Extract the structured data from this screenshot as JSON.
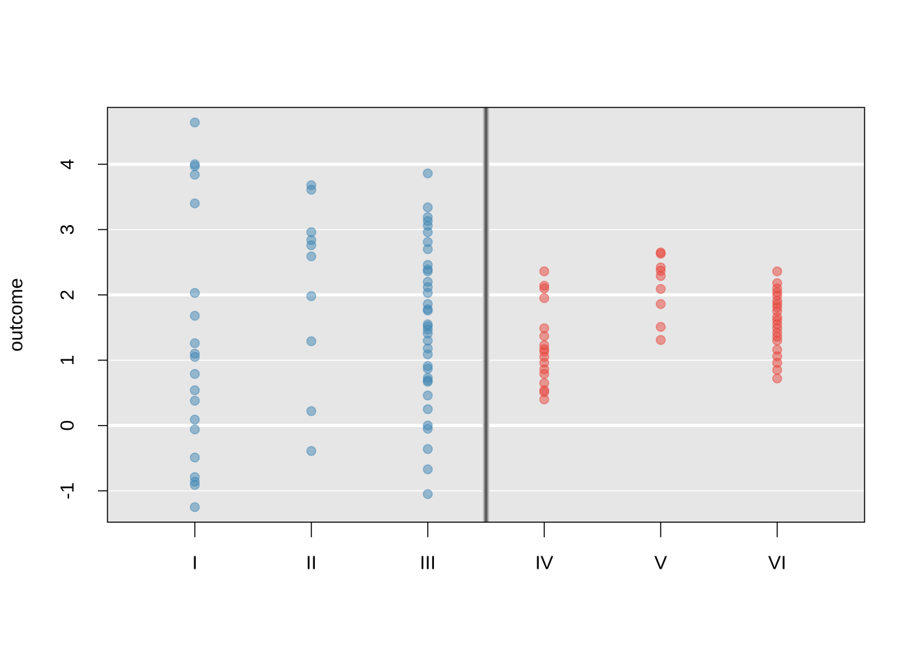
{
  "chart_data": {
    "type": "scatter",
    "ylabel": "outcome",
    "xlim": [
      0.25,
      6.75
    ],
    "ylim": [
      -1.48,
      4.87
    ],
    "xticks": [
      {
        "value": 1,
        "label": "I"
      },
      {
        "value": 2,
        "label": "II"
      },
      {
        "value": 3,
        "label": "III"
      },
      {
        "value": 4,
        "label": "IV"
      },
      {
        "value": 5,
        "label": "V"
      },
      {
        "value": 6,
        "label": "VI"
      }
    ],
    "yticks": [
      -1,
      0,
      1,
      2,
      3,
      4
    ],
    "grid": true,
    "divider": 3.5,
    "series": [
      {
        "color": "#3f86b4",
        "x": [
          1,
          1,
          1,
          1,
          1,
          1,
          1,
          1,
          1,
          1,
          1,
          1,
          1,
          1,
          1,
          1,
          1,
          1,
          1,
          1,
          2,
          2,
          2,
          2,
          2,
          2,
          2,
          2,
          2,
          2,
          3,
          3,
          3,
          3,
          3,
          3,
          3,
          3,
          3,
          3,
          3,
          3,
          3,
          3,
          3,
          3,
          3,
          3,
          3,
          3,
          3,
          3,
          3,
          3,
          3,
          3,
          3,
          3,
          3,
          3,
          3,
          3,
          3,
          3,
          3,
          3
        ],
        "values": [
          4.64,
          4.0,
          3.97,
          3.84,
          3.4,
          2.03,
          1.68,
          1.26,
          1.1,
          1.05,
          0.79,
          0.54,
          0.38,
          0.09,
          -0.06,
          -0.49,
          -0.79,
          -0.86,
          -0.91,
          -1.25,
          3.68,
          3.61,
          2.96,
          2.84,
          2.76,
          2.59,
          1.98,
          1.29,
          0.22,
          -0.39,
          3.86,
          3.34,
          3.19,
          3.13,
          3.06,
          2.96,
          2.81,
          2.7,
          2.46,
          2.39,
          2.36,
          2.2,
          2.12,
          2.03,
          1.86,
          1.78,
          1.76,
          1.55,
          1.52,
          1.47,
          1.41,
          1.3,
          1.18,
          1.09,
          0.91,
          0.87,
          0.73,
          0.69,
          0.67,
          0.46,
          0.25,
          0.0,
          -0.05,
          -0.36,
          -0.67,
          -1.05
        ]
      },
      {
        "color": "#e8433a",
        "x": [
          4,
          4,
          4,
          4,
          4,
          4,
          4,
          4,
          4,
          4,
          4,
          4,
          4,
          4,
          4,
          4,
          4,
          5,
          5,
          5,
          5,
          5,
          5,
          5,
          5,
          5,
          6,
          6,
          6,
          6,
          6,
          6,
          6,
          6,
          6,
          6,
          6,
          6,
          6,
          6,
          6,
          6,
          6,
          6,
          6,
          6,
          6
        ],
        "values": [
          2.36,
          2.14,
          2.1,
          1.95,
          1.49,
          1.37,
          1.23,
          1.17,
          1.13,
          1.05,
          0.96,
          0.86,
          0.79,
          0.65,
          0.54,
          0.51,
          0.4,
          2.65,
          2.63,
          2.42,
          2.37,
          2.29,
          2.09,
          1.86,
          1.51,
          1.31,
          2.36,
          2.18,
          2.1,
          2.04,
          1.99,
          1.91,
          1.86,
          1.81,
          1.75,
          1.66,
          1.61,
          1.55,
          1.49,
          1.42,
          1.36,
          1.3,
          1.16,
          1.06,
          0.96,
          0.85,
          0.72
        ]
      }
    ]
  }
}
